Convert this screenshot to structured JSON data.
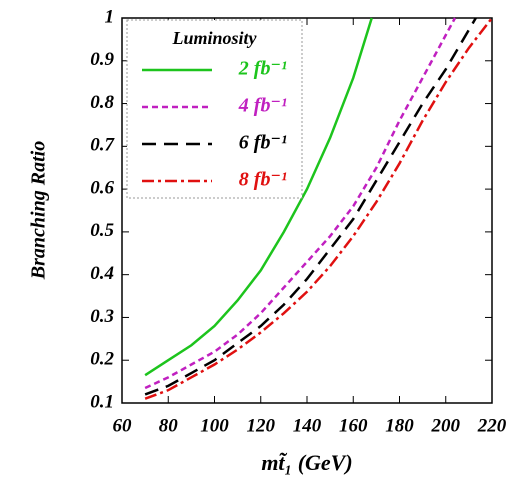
{
  "chart_data": {
    "type": "line",
    "x_label": "mt̃₁ (GeV)",
    "y_label": "Branching Ratio",
    "legend_title": "Luminosity",
    "legend": "upper left",
    "xlim": [
      60,
      220
    ],
    "xticks": [
      60,
      80,
      100,
      120,
      140,
      160,
      180,
      200,
      220
    ],
    "ylim": [
      0.1,
      1
    ],
    "yticks": [
      0.1,
      0.2,
      0.3,
      0.4,
      0.5,
      0.6,
      0.7,
      0.8,
      0.9,
      1
    ],
    "series": [
      {
        "name": "2 fb⁻¹",
        "color": "#1dc41d",
        "dash": "none",
        "x": [
          70,
          80,
          90,
          100,
          110,
          120,
          130,
          140,
          150,
          160,
          168
        ],
        "values": [
          0.165,
          0.2,
          0.235,
          0.28,
          0.34,
          0.41,
          0.5,
          0.6,
          0.72,
          0.86,
          1.0
        ]
      },
      {
        "name": "4 fb⁻¹",
        "color": "#c020c0",
        "dash": "6,4",
        "x": [
          70,
          80,
          90,
          100,
          110,
          120,
          130,
          140,
          150,
          160,
          170,
          180,
          190,
          204
        ],
        "values": [
          0.135,
          0.16,
          0.19,
          0.22,
          0.26,
          0.31,
          0.37,
          0.43,
          0.49,
          0.56,
          0.65,
          0.76,
          0.86,
          1.0
        ]
      },
      {
        "name": "6 fb⁻¹",
        "color": "#000000",
        "dash": "14,8",
        "x": [
          70,
          80,
          90,
          100,
          110,
          120,
          130,
          140,
          150,
          160,
          170,
          180,
          190,
          200,
          213
        ],
        "values": [
          0.12,
          0.14,
          0.17,
          0.2,
          0.24,
          0.28,
          0.33,
          0.39,
          0.46,
          0.53,
          0.62,
          0.71,
          0.8,
          0.88,
          1.0
        ]
      },
      {
        "name": "8 fb⁻¹",
        "color": "#e01010",
        "dash": "12,4,3,4",
        "x": [
          70,
          80,
          90,
          100,
          110,
          120,
          130,
          140,
          150,
          160,
          170,
          180,
          190,
          200,
          210,
          220
        ],
        "values": [
          0.11,
          0.13,
          0.16,
          0.19,
          0.225,
          0.265,
          0.31,
          0.36,
          0.42,
          0.49,
          0.57,
          0.66,
          0.76,
          0.85,
          0.93,
          1.0
        ]
      }
    ]
  }
}
